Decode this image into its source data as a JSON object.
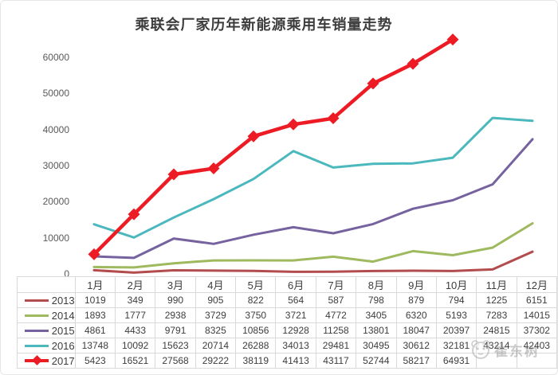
{
  "watermark": {
    "text": "崔东树",
    "icon": "panda-logo"
  },
  "colors": {
    "title_text": "#3d3d3d",
    "axis_text": "#595959",
    "table_border": "#d9d9d9",
    "s2013": "#b34c4c",
    "s2014": "#9fb95f",
    "s2015": "#75629f",
    "s2016": "#4ab8bd",
    "s2017": "#ed1c24"
  },
  "chart_data": {
    "type": "line",
    "title": "乘联会厂家历年新能源乘用车销量走势",
    "xlabel": "",
    "ylabel": "",
    "categories": [
      "1月",
      "2月",
      "3月",
      "4月",
      "5月",
      "6月",
      "7月",
      "8月",
      "9月",
      "10月",
      "11月",
      "12月"
    ],
    "series": [
      {
        "name": "2013",
        "color": "#b34c4c",
        "marker": null,
        "values": [
          1019,
          349,
          990,
          905,
          822,
          564,
          587,
          798,
          879,
          794,
          1225,
          6151
        ]
      },
      {
        "name": "2014",
        "color": "#9fb95f",
        "marker": null,
        "values": [
          1893,
          1777,
          2938,
          3729,
          3750,
          3721,
          4772,
          3405,
          6320,
          5193,
          7283,
          14015
        ]
      },
      {
        "name": "2015",
        "color": "#75629f",
        "marker": null,
        "values": [
          4861,
          4433,
          9791,
          8325,
          10856,
          12928,
          11258,
          13801,
          18047,
          20397,
          24815,
          37302
        ]
      },
      {
        "name": "2016",
        "color": "#4ab8bd",
        "marker": null,
        "values": [
          13748,
          10092,
          15623,
          20714,
          26288,
          34013,
          29481,
          30495,
          30612,
          32181,
          43214,
          42403
        ]
      },
      {
        "name": "2017",
        "color": "#ed1c24",
        "marker": "diamond",
        "values": [
          5423,
          16521,
          27568,
          29222,
          38119,
          41413,
          43117,
          52744,
          58217,
          64931,
          null,
          null
        ]
      }
    ],
    "yticks": [
      0,
      10000,
      20000,
      30000,
      40000,
      50000,
      60000
    ],
    "ylim": [
      0,
      66000
    ],
    "grid": false,
    "legend_position": "table-left",
    "data_table_shown": true
  }
}
